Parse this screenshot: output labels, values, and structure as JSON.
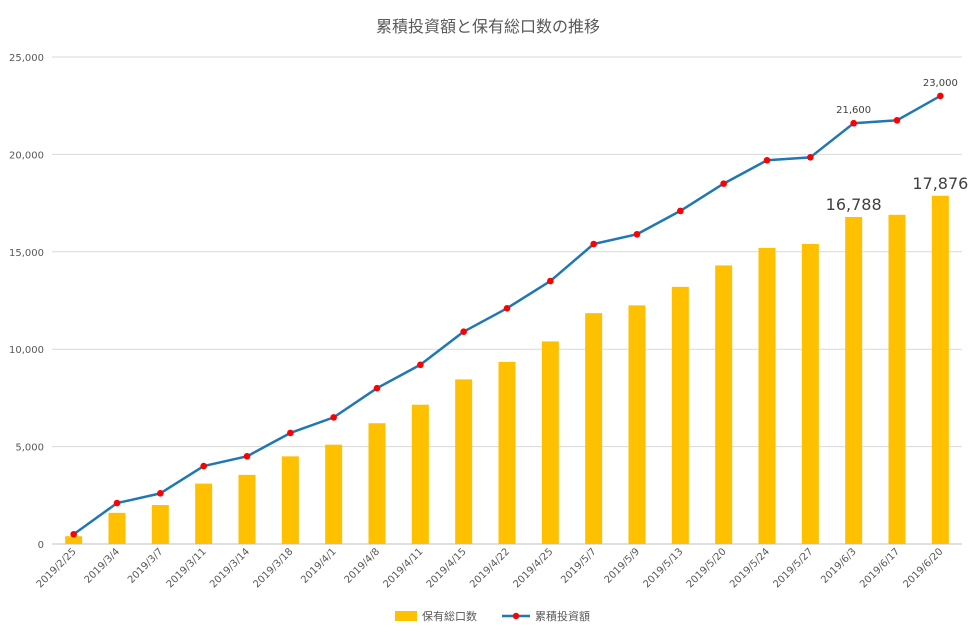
{
  "chart_data": {
    "type": "bar",
    "title": "累積投資額と保有総口数の推移",
    "categories": [
      "2019/2/25",
      "2019/3/4",
      "2019/3/7",
      "2019/3/11",
      "2019/3/14",
      "2019/3/18",
      "2019/4/1",
      "2019/4/8",
      "2019/4/11",
      "2019/4/15",
      "2019/4/22",
      "2019/4/25",
      "2019/5/7",
      "2019/5/9",
      "2019/5/13",
      "2019/5/20",
      "2019/5/24",
      "2019/5/27",
      "2019/6/3",
      "2019/6/17",
      "2019/6/20"
    ],
    "ylim": [
      0,
      25000
    ],
    "yticks": [
      0,
      5000,
      10000,
      15000,
      20000,
      25000
    ],
    "ytick_labels": [
      "0",
      "5,000",
      "10,000",
      "15,000",
      "20,000",
      "25,000"
    ],
    "grid": true,
    "legend_position": "bottom",
    "series": [
      {
        "name": "保有総口数",
        "type": "bar",
        "color": "#FFC000",
        "values": [
          400,
          1600,
          2000,
          3100,
          3550,
          4500,
          5100,
          6200,
          7150,
          8450,
          9350,
          10400,
          11850,
          12250,
          13200,
          14300,
          15200,
          15400,
          16788,
          16900,
          17876
        ]
      },
      {
        "name": "累積投資額",
        "type": "line",
        "color": "#1F77B4",
        "marker_color": "#FF0000",
        "values": [
          500,
          2100,
          2600,
          4000,
          4500,
          5700,
          6500,
          8000,
          9200,
          10900,
          12100,
          13500,
          15400,
          15900,
          17100,
          18500,
          19700,
          19850,
          21600,
          21750,
          23000
        ]
      }
    ],
    "annotations": [
      {
        "series": "保有総口数",
        "index": 18,
        "text": "16,788",
        "size": "large"
      },
      {
        "series": "保有総口数",
        "index": 20,
        "text": "17,876",
        "size": "large"
      },
      {
        "series": "累積投資額",
        "index": 18,
        "text": "21,600",
        "size": "small"
      },
      {
        "series": "累積投資額",
        "index": 20,
        "text": "23,000",
        "size": "small"
      }
    ]
  }
}
